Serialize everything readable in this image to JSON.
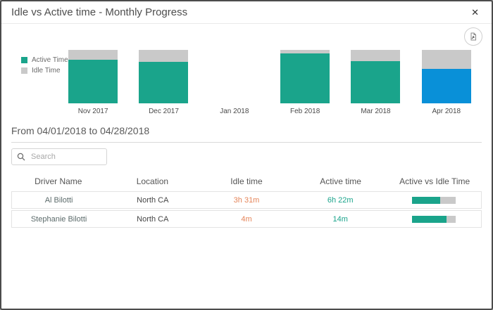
{
  "dialog": {
    "title": "Idle vs Active time - Monthly Progress",
    "close_glyph": "✕"
  },
  "colors": {
    "active_teal": "#1aa48b",
    "idle_gray": "#c9c9c9",
    "selected_blue": "#0990d8",
    "idle_orange_text": "#e5855a"
  },
  "chart_data": {
    "type": "bar",
    "subtype": "stacked-percent-column",
    "categories": [
      "Nov 2017",
      "Dec 2017",
      "Jan 2018",
      "Feb 2018",
      "Mar 2018",
      "Apr 2018"
    ],
    "series": [
      {
        "name": "Active Time",
        "color": "#1aa48b",
        "values": [
          82,
          78,
          0,
          93,
          79,
          64
        ]
      },
      {
        "name": "Idle Time",
        "color": "#c9c9c9",
        "values": [
          18,
          22,
          0,
          7,
          21,
          36
        ]
      }
    ],
    "selected_category": "Apr 2018",
    "selected_color": "#0990d8",
    "title": "Idle vs Active time - Monthly Progress",
    "xlabel": "",
    "ylabel": "",
    "ylim": [
      0,
      100
    ],
    "grid": false,
    "legend_position": "left"
  },
  "filters": {
    "date_range_label": "From 04/01/2018 to 04/28/2018",
    "search_placeholder": "Search"
  },
  "table": {
    "columns": [
      "Driver Name",
      "Location",
      "Idle time",
      "Active time",
      "Active vs Idle Time"
    ],
    "rows": [
      {
        "driver": "Al Bilotti",
        "location": "North CA",
        "idle": "3h 31m",
        "active": "6h 22m",
        "active_pct": 64
      },
      {
        "driver": "Stephanie Bilotti",
        "location": "North CA",
        "idle": "4m",
        "active": "14m",
        "active_pct": 78
      }
    ]
  },
  "icons": {
    "close": "close-icon",
    "export": "export-report-icon",
    "search": "search-icon"
  }
}
